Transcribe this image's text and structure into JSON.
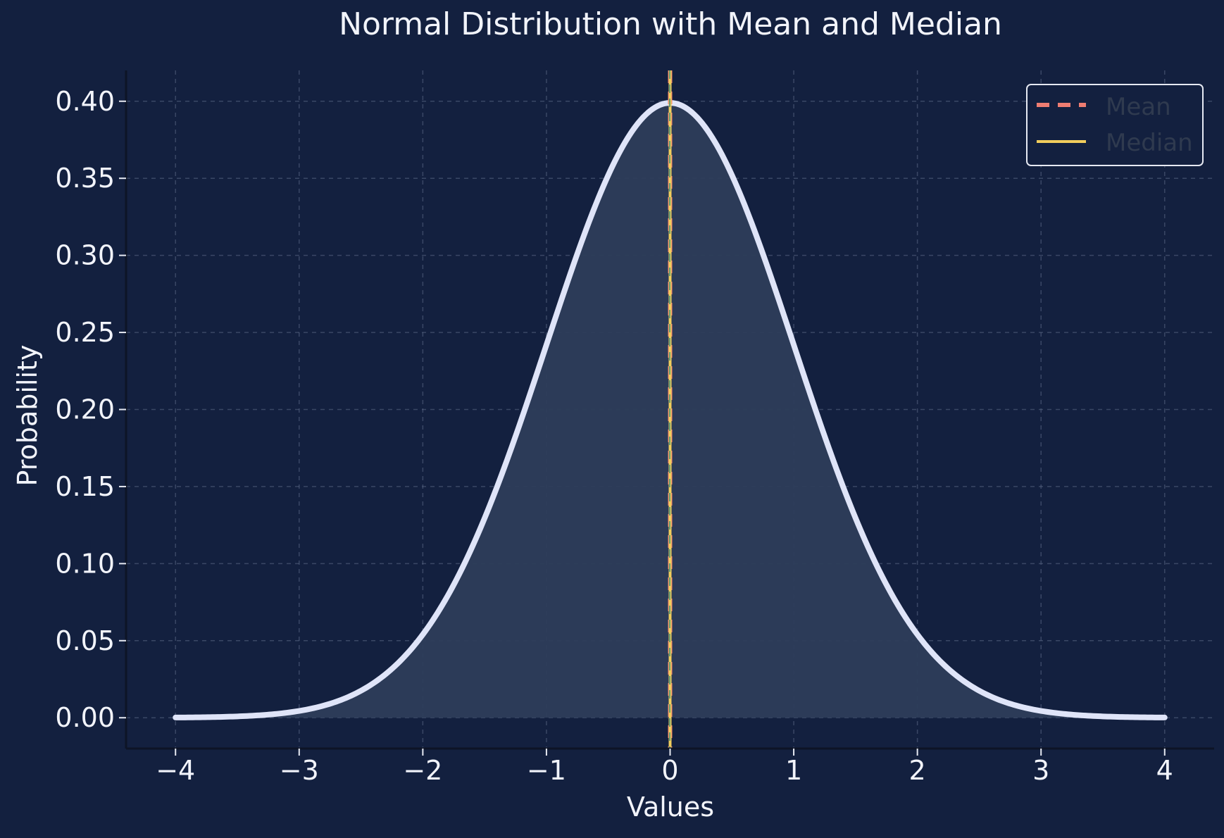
{
  "chart_data": {
    "type": "line",
    "title": "Normal Distribution with Mean and Median",
    "xlabel": "Values",
    "ylabel": "Probability",
    "xlim": [
      -4.4,
      4.4
    ],
    "ylim": [
      -0.02,
      0.42
    ],
    "x_ticks": [
      -4,
      -3,
      -2,
      -1,
      0,
      1,
      2,
      3,
      4
    ],
    "x_tick_labels": [
      "−4",
      "−3",
      "−2",
      "−1",
      "0",
      "1",
      "2",
      "3",
      "4"
    ],
    "y_ticks": [
      0.0,
      0.05,
      0.1,
      0.15,
      0.2,
      0.25,
      0.3,
      0.35,
      0.4
    ],
    "y_tick_labels": [
      "0.00",
      "0.05",
      "0.10",
      "0.15",
      "0.20",
      "0.25",
      "0.30",
      "0.35",
      "0.40"
    ],
    "grid": true,
    "legend": {
      "placement": "upper right",
      "entries": [
        {
          "label": "Mean",
          "style": "dashed",
          "color": "#ee7d72"
        },
        {
          "label": "Median",
          "style": "solid",
          "color": "#f2cd5c"
        }
      ]
    },
    "series": [
      {
        "kind": "curve",
        "color": "#dfe4f8",
        "fill": "#2d3d5a",
        "x": [
          -4.0,
          -3.5,
          -3.0,
          -2.75,
          -2.5,
          -2.25,
          -2.0,
          -1.75,
          -1.5,
          -1.25,
          -1.0,
          -0.75,
          -0.5,
          -0.25,
          0.0,
          0.25,
          0.5,
          0.75,
          1.0,
          1.25,
          1.5,
          1.75,
          2.0,
          2.25,
          2.5,
          2.75,
          3.0,
          3.5,
          4.0
        ],
        "y": [
          0.0001,
          0.0009,
          0.0044,
          0.0091,
          0.0175,
          0.0317,
          0.054,
          0.0863,
          0.1295,
          0.1826,
          0.242,
          0.3011,
          0.3521,
          0.3867,
          0.3989,
          0.3867,
          0.3521,
          0.3011,
          0.242,
          0.1826,
          0.1295,
          0.0863,
          0.054,
          0.0317,
          0.0175,
          0.0091,
          0.0044,
          0.0009,
          0.0001
        ]
      }
    ],
    "vertical_lines": [
      {
        "name": "Mean",
        "x": 0.0,
        "color": "#ee7d72",
        "style": "dashed"
      },
      {
        "name": "Median",
        "x": 0.0,
        "color": "#f2cd5c",
        "style": "solid"
      }
    ],
    "colors": {
      "background": "#13203f",
      "text": "#f2f4fb",
      "grid": "#5a6785",
      "axis": "#0d1426",
      "legend_text": "#2f3a4f",
      "legend_border": "#e6e9f2"
    }
  }
}
